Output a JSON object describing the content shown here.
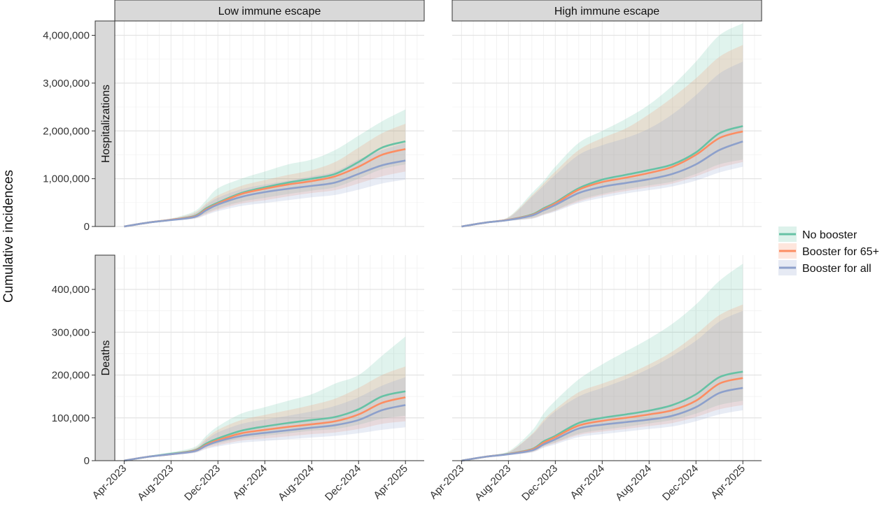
{
  "chart_data": {
    "type": "area",
    "ylabel": "Cumulative incidences",
    "x_ticks": [
      "Apr-2023",
      "Aug-2023",
      "Dec-2023",
      "Apr-2024",
      "Aug-2024",
      "Dec-2024",
      "Apr-2025"
    ],
    "columns": [
      "Low immune escape",
      "High immune escape"
    ],
    "rows": [
      "Hospitalizations",
      "Deaths"
    ],
    "legend": {
      "position": "right",
      "entries": [
        {
          "name": "No booster",
          "color": "#66c2a5"
        },
        {
          "name": "Booster for 65+",
          "color": "#fc8d62"
        },
        {
          "name": "Booster for all",
          "color": "#8da0cb"
        }
      ]
    },
    "grid": true,
    "x_months": [
      0,
      2,
      4,
      6,
      7,
      8,
      10,
      12,
      14,
      16,
      18,
      20,
      22,
      24
    ],
    "panels": [
      {
        "row": "Hospitalizations",
        "column": "Low immune escape",
        "ylim": [
          0,
          4300000
        ],
        "y_ticks": [
          0,
          1000000,
          2000000,
          3000000,
          4000000
        ],
        "y_tick_labels": [
          "0",
          "1,000,000",
          "2,000,000",
          "3,000,000",
          "4,000,000"
        ],
        "series": [
          {
            "name": "No booster",
            "mean": [
              0,
              80000,
              140000,
              220000,
              380000,
              500000,
              700000,
              820000,
              920000,
              1000000,
              1100000,
              1350000,
              1650000,
              1780000
            ],
            "lower": [
              0,
              70000,
              120000,
              180000,
              280000,
              380000,
              520000,
              600000,
              680000,
              750000,
              820000,
              1000000,
              1200000,
              1300000
            ],
            "upper": [
              0,
              100000,
              170000,
              320000,
              550000,
              800000,
              1000000,
              1150000,
              1300000,
              1400000,
              1600000,
              1900000,
              2200000,
              2450000
            ]
          },
          {
            "name": "Booster for 65+",
            "mean": [
              0,
              80000,
              140000,
              210000,
              360000,
              480000,
              680000,
              790000,
              880000,
              950000,
              1050000,
              1250000,
              1500000,
              1620000
            ],
            "lower": [
              0,
              70000,
              120000,
              170000,
              260000,
              350000,
              480000,
              550000,
              630000,
              700000,
              760000,
              900000,
              1050000,
              1150000
            ],
            "upper": [
              0,
              95000,
              160000,
              290000,
              480000,
              650000,
              850000,
              970000,
              1080000,
              1180000,
              1350000,
              1650000,
              1950000,
              2150000
            ]
          },
          {
            "name": "Booster for all",
            "mean": [
              0,
              80000,
              135000,
              200000,
              340000,
              460000,
              620000,
              720000,
              790000,
              850000,
              920000,
              1100000,
              1280000,
              1380000
            ],
            "lower": [
              0,
              70000,
              115000,
              160000,
              240000,
              320000,
              430000,
              490000,
              550000,
              610000,
              660000,
              770000,
              900000,
              980000
            ],
            "upper": [
              0,
              90000,
              155000,
              270000,
              450000,
              600000,
              780000,
              880000,
              960000,
              1050000,
              1150000,
              1400000,
              1600000,
              1750000
            ]
          }
        ]
      },
      {
        "row": "Hospitalizations",
        "column": "High immune escape",
        "ylim": [
          0,
          4300000
        ],
        "y_ticks": [
          0,
          1000000,
          2000000,
          3000000,
          4000000
        ],
        "y_tick_labels": [
          "0",
          "1,000,000",
          "2,000,000",
          "3,000,000",
          "4,000,000"
        ],
        "series": [
          {
            "name": "No booster",
            "mean": [
              0,
              80000,
              140000,
              250000,
              380000,
              500000,
              800000,
              980000,
              1080000,
              1180000,
              1300000,
              1550000,
              1950000,
              2100000
            ],
            "lower": [
              0,
              70000,
              120000,
              180000,
              260000,
              340000,
              550000,
              680000,
              780000,
              860000,
              940000,
              1100000,
              1300000,
              1400000
            ],
            "upper": [
              0,
              100000,
              200000,
              700000,
              950000,
              1250000,
              1750000,
              2000000,
              2250000,
              2550000,
              2950000,
              3450000,
              4000000,
              4250000
            ]
          },
          {
            "name": "Booster for 65+",
            "mean": [
              0,
              80000,
              140000,
              240000,
              360000,
              480000,
              770000,
              930000,
              1020000,
              1120000,
              1250000,
              1500000,
              1850000,
              1990000
            ],
            "lower": [
              0,
              70000,
              120000,
              170000,
              250000,
              330000,
              520000,
              650000,
              740000,
              820000,
              900000,
              1050000,
              1230000,
              1350000
            ],
            "upper": [
              0,
              95000,
              190000,
              650000,
              900000,
              1150000,
              1600000,
              1850000,
              2050000,
              2350000,
              2700000,
              3100000,
              3550000,
              3800000
            ]
          },
          {
            "name": "Booster for all",
            "mean": [
              0,
              80000,
              135000,
              230000,
              340000,
              450000,
              700000,
              830000,
              910000,
              990000,
              1100000,
              1300000,
              1600000,
              1780000
            ],
            "lower": [
              0,
              70000,
              115000,
              160000,
              240000,
              310000,
              490000,
              600000,
              690000,
              760000,
              840000,
              960000,
              1130000,
              1250000
            ],
            "upper": [
              0,
              90000,
              180000,
              620000,
              850000,
              1080000,
              1500000,
              1700000,
              1850000,
              2050000,
              2350000,
              2750000,
              3200000,
              3450000
            ]
          }
        ]
      },
      {
        "row": "Deaths",
        "column": "Low immune escape",
        "ylim": [
          0,
          480000
        ],
        "y_ticks": [
          0,
          100000,
          200000,
          300000,
          400000
        ],
        "y_tick_labels": [
          "0",
          "100,000",
          "200,000",
          "300,000",
          "400,000"
        ],
        "series": [
          {
            "name": "No booster",
            "mean": [
              0,
              9000,
              16000,
              24000,
              40000,
              52000,
              70000,
              80000,
              88000,
              95000,
              102000,
              120000,
              150000,
              162000
            ],
            "lower": [
              0,
              8000,
              14000,
              20000,
              32000,
              40000,
              52000,
              58000,
              64000,
              70000,
              74000,
              84000,
              98000,
              105000
            ],
            "upper": [
              0,
              11000,
              20000,
              32000,
              58000,
              80000,
              110000,
              125000,
              140000,
              155000,
              180000,
              200000,
              245000,
              290000
            ]
          },
          {
            "name": "Booster for 65+",
            "mean": [
              0,
              9000,
              15000,
              23000,
              37000,
              48000,
              64000,
              72000,
              79000,
              85000,
              92000,
              108000,
              135000,
              148000
            ],
            "lower": [
              0,
              8000,
              13000,
              19000,
              29000,
              36000,
              47000,
              52000,
              57000,
              62000,
              66000,
              74000,
              86000,
              92000
            ],
            "upper": [
              0,
              10500,
              18000,
              29000,
              52000,
              72000,
              95000,
              107000,
              118000,
              130000,
              145000,
              170000,
              200000,
              220000
            ]
          },
          {
            "name": "Booster for all",
            "mean": [
              0,
              9000,
              15000,
              22000,
              35000,
              45000,
              58000,
              65000,
              71000,
              77000,
              83000,
              95000,
              118000,
              130000
            ],
            "lower": [
              0,
              8000,
              13000,
              18000,
              27000,
              33000,
              42000,
              46000,
              50000,
              54000,
              58000,
              64000,
              72000,
              78000
            ],
            "upper": [
              0,
              10000,
              17000,
              27000,
              48000,
              66000,
              86000,
              96000,
              105000,
              115000,
              128000,
              148000,
              175000,
              195000
            ]
          }
        ]
      },
      {
        "row": "Deaths",
        "column": "High immune escape",
        "ylim": [
          0,
          480000
        ],
        "y_ticks": [
          0,
          100000,
          200000,
          300000,
          400000
        ],
        "y_tick_labels": [
          "0",
          "100,000",
          "200,000",
          "300,000",
          "400,000"
        ],
        "series": [
          {
            "name": "No booster",
            "mean": [
              0,
              9000,
              16000,
              27000,
              45000,
              58000,
              88000,
              100000,
              108000,
              117000,
              130000,
              155000,
              195000,
              208000
            ],
            "lower": [
              0,
              8000,
              14000,
              21000,
              34000,
              43000,
              63000,
              72000,
              79000,
              87000,
              95000,
              110000,
              130000,
              140000
            ],
            "upper": [
              0,
              11000,
              22000,
              70000,
              110000,
              140000,
              190000,
              225000,
              255000,
              285000,
              320000,
              365000,
              420000,
              460000
            ]
          },
          {
            "name": "Booster for 65+",
            "mean": [
              0,
              9000,
              15500,
              26000,
              42000,
              55000,
              82000,
              93000,
              100000,
              108000,
              118000,
              140000,
              180000,
              193000
            ],
            "lower": [
              0,
              8000,
              13500,
              20000,
              32000,
              41000,
              60000,
              68000,
              74000,
              81000,
              88000,
              102000,
              120000,
              130000
            ],
            "upper": [
              0,
              10500,
              20000,
              62000,
              95000,
              120000,
              160000,
              180000,
              200000,
              225000,
              255000,
              295000,
              340000,
              365000
            ]
          },
          {
            "name": "Booster for all",
            "mean": [
              0,
              9000,
              15000,
              24000,
              38000,
              50000,
              75000,
              84000,
              90000,
              96000,
              105000,
              125000,
              158000,
              170000
            ],
            "lower": [
              0,
              8000,
              13000,
              19000,
              30000,
              38000,
              55000,
              62000,
              68000,
              74000,
              80000,
              92000,
              108000,
              118000
            ],
            "upper": [
              0,
              10000,
              19000,
              60000,
              90000,
              115000,
              150000,
              170000,
              190000,
              215000,
              245000,
              280000,
              325000,
              350000
            ]
          }
        ]
      }
    ]
  }
}
